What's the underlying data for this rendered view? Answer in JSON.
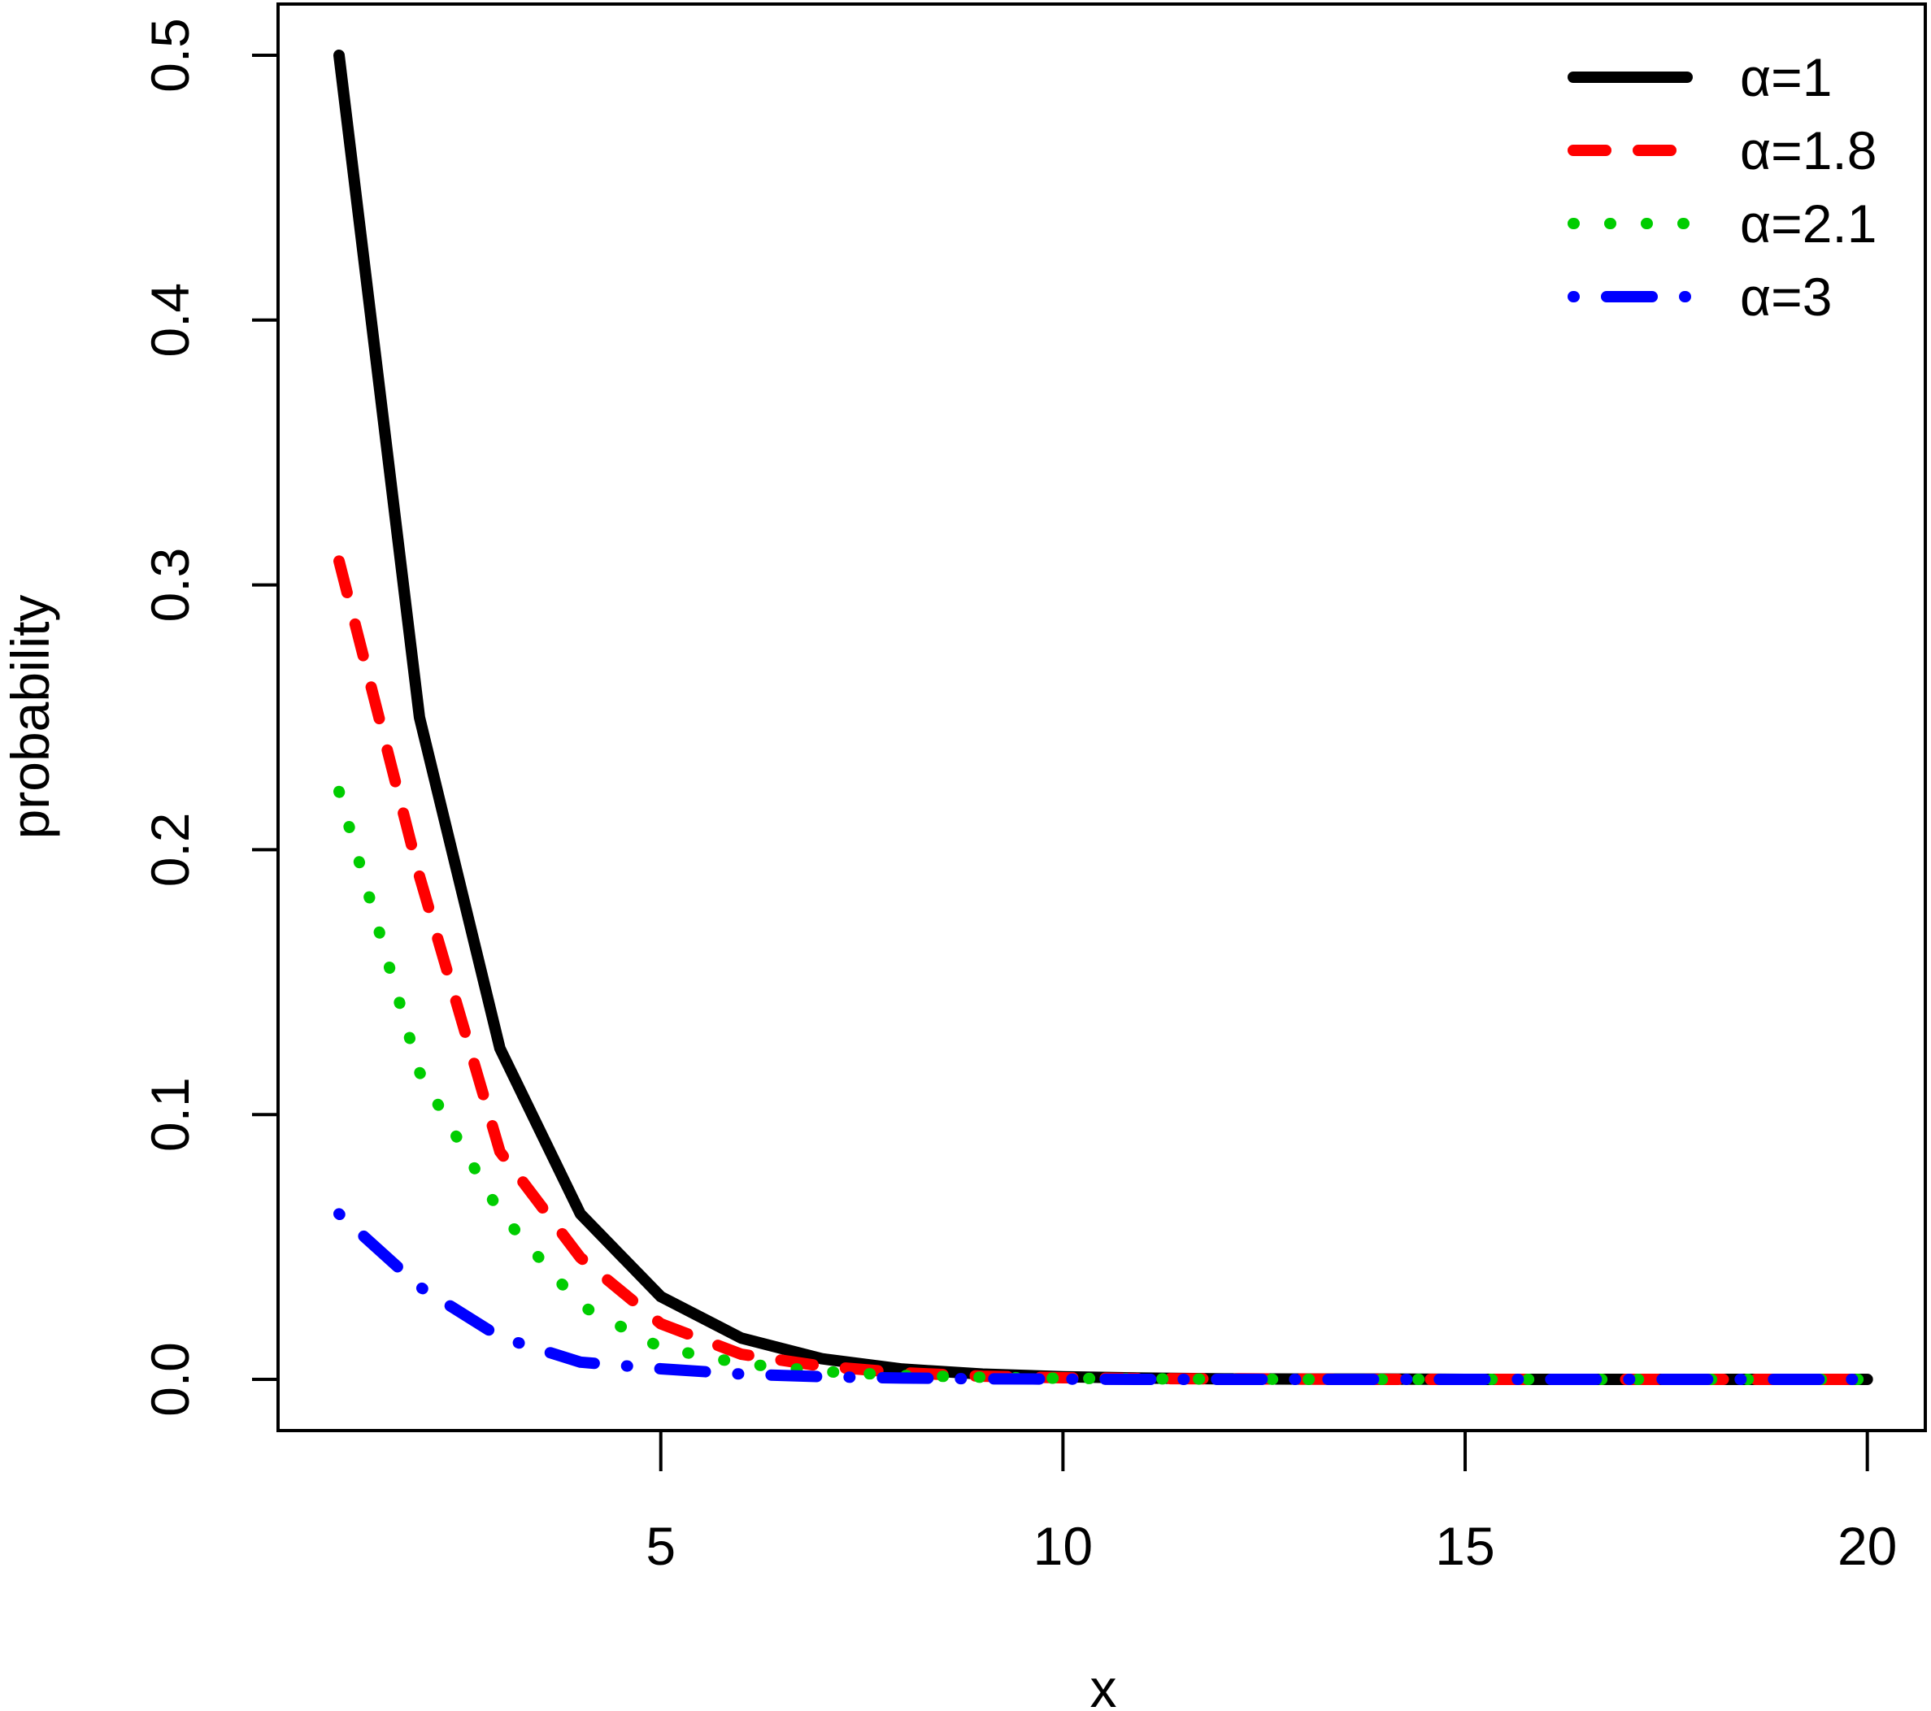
{
  "chart_data": {
    "type": "line",
    "title": "",
    "xlabel": "x",
    "ylabel": "probability",
    "xlim": [
      1,
      20
    ],
    "ylim": [
      0,
      0.5
    ],
    "xticks": [
      5,
      10,
      15,
      20
    ],
    "yticks": [
      "0.0",
      "0.1",
      "0.2",
      "0.3",
      "0.4",
      "0.5"
    ],
    "grid": false,
    "legend_position": "top-right",
    "x": [
      1,
      2,
      3,
      4,
      5,
      6,
      7,
      8,
      9,
      10,
      11,
      12,
      13,
      14,
      15,
      16,
      17,
      18,
      19,
      20
    ],
    "series": [
      {
        "name": "α=1",
        "color": "#000000",
        "style": "solid",
        "values": [
          0.5,
          0.25,
          0.125,
          0.0625,
          0.03125,
          0.0156,
          0.0078,
          0.0039,
          0.002,
          0.001,
          0.0005,
          0.0002,
          0.0001,
          0.0001,
          0,
          0,
          0,
          0,
          0,
          0
        ]
      },
      {
        "name": "α=1.8",
        "color": "#ff0000",
        "style": "dashed",
        "values": [
          0.309,
          0.19,
          0.086,
          0.046,
          0.021,
          0.0095,
          0.005,
          0.0025,
          0.0012,
          0.0006,
          0.0003,
          0.0002,
          0.0001,
          0,
          0,
          0,
          0,
          0,
          0,
          0
        ]
      },
      {
        "name": "α=2.1",
        "color": "#00cd00",
        "style": "dotted",
        "values": [
          0.222,
          0.116,
          0.063,
          0.028,
          0.012,
          0.006,
          0.003,
          0.0015,
          0.0008,
          0.0004,
          0.0002,
          0.0001,
          0,
          0,
          0,
          0,
          0,
          0,
          0,
          0
        ]
      },
      {
        "name": "α=3",
        "color": "#0000ff",
        "style": "dotdash",
        "values": [
          0.0625,
          0.035,
          0.016,
          0.0065,
          0.004,
          0.002,
          0.001,
          0.0005,
          0.0002,
          0.0001,
          0,
          0,
          0,
          0,
          0,
          0,
          0,
          0,
          0,
          0
        ]
      }
    ]
  }
}
